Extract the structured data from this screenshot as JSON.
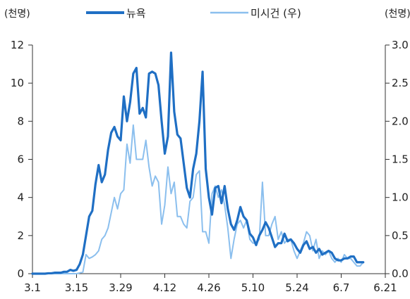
{
  "chart_data": {
    "type": "line",
    "title": "",
    "left_unit": "(천명)",
    "right_unit": "(천명)",
    "x_ticks": [
      "3.1",
      "3.15",
      "3.29",
      "4.12",
      "4.26",
      "5.10",
      "5.24",
      "6.7",
      "6.21"
    ],
    "y_left": {
      "lim": [
        0,
        12
      ],
      "ticks": [
        "0",
        "2",
        "4",
        "6",
        "8",
        "10",
        "12"
      ]
    },
    "y_right": {
      "lim": [
        0,
        3.0
      ],
      "ticks": [
        "0.0",
        "0.5",
        "1.0",
        "1.5",
        "2.0",
        "2.5",
        "3.0"
      ]
    },
    "legend_position": "top",
    "series": [
      {
        "name": "뉴욕",
        "axis": "left",
        "color": "#1f6fc4",
        "start": "2020-03-01",
        "values": [
          0,
          0,
          0,
          0,
          0,
          0.02,
          0.02,
          0.05,
          0.05,
          0.05,
          0.1,
          0.1,
          0.2,
          0.15,
          0.2,
          0.5,
          1.0,
          2.0,
          3.0,
          3.3,
          4.7,
          5.7,
          4.8,
          5.2,
          6.5,
          7.4,
          7.7,
          7.2,
          7.0,
          9.3,
          8.0,
          9.0,
          10.5,
          10.8,
          8.4,
          8.7,
          8.2,
          10.5,
          10.6,
          10.5,
          9.9,
          8.0,
          6.3,
          7.2,
          11.6,
          8.5,
          7.3,
          7.1,
          5.8,
          4.5,
          4.0,
          5.5,
          6.3,
          8.0,
          10.6,
          5.5,
          4.0,
          3.1,
          4.5,
          4.6,
          3.7,
          4.6,
          3.4,
          2.6,
          2.3,
          2.8,
          3.5,
          3.0,
          2.8,
          2.1,
          1.9,
          1.5,
          2.0,
          2.3,
          2.7,
          2.4,
          1.9,
          1.4,
          1.6,
          1.6,
          2.1,
          1.7,
          1.8,
          1.6,
          1.3,
          1.1,
          1.5,
          1.7,
          1.3,
          1.4,
          1.1,
          1.3,
          1.0,
          1.1,
          1.2,
          1.1,
          0.8,
          0.7,
          0.7,
          0.8,
          0.8,
          0.9,
          0.9,
          0.6,
          0.6,
          0.6
        ]
      },
      {
        "name": "미시건 (우)",
        "axis": "right",
        "color": "#8bbfee",
        "start": "2020-03-01",
        "values": [
          0,
          0,
          0,
          0,
          0,
          0,
          0,
          0,
          0,
          0,
          0,
          0,
          0,
          0,
          0,
          0.01,
          0.02,
          0.25,
          0.2,
          0.22,
          0.25,
          0.3,
          0.45,
          0.5,
          0.6,
          0.8,
          1.0,
          0.85,
          1.05,
          1.1,
          1.7,
          1.45,
          1.95,
          1.5,
          1.5,
          1.5,
          1.75,
          1.4,
          1.15,
          1.28,
          1.2,
          0.65,
          0.9,
          1.4,
          1.05,
          1.2,
          0.75,
          0.75,
          0.65,
          0.6,
          0.95,
          1.0,
          1.3,
          1.35,
          0.55,
          0.55,
          0.4,
          1.05,
          1.15,
          1.0,
          1.1,
          0.9,
          0.6,
          0.2,
          0.45,
          0.65,
          0.7,
          0.6,
          0.7,
          0.45,
          0.4,
          0.4,
          0.45,
          1.2,
          0.5,
          0.5,
          0.65,
          0.75,
          0.45,
          0.55,
          0.4,
          0.45,
          0.45,
          0.3,
          0.2,
          0.3,
          0.4,
          0.55,
          0.5,
          0.3,
          0.45,
          0.2,
          0.3,
          0.25,
          0.3,
          0.2,
          0.15,
          0.2,
          0.15,
          0.25,
          0.2,
          0.2,
          0.15,
          0.1,
          0.1,
          0.15
        ]
      }
    ]
  }
}
